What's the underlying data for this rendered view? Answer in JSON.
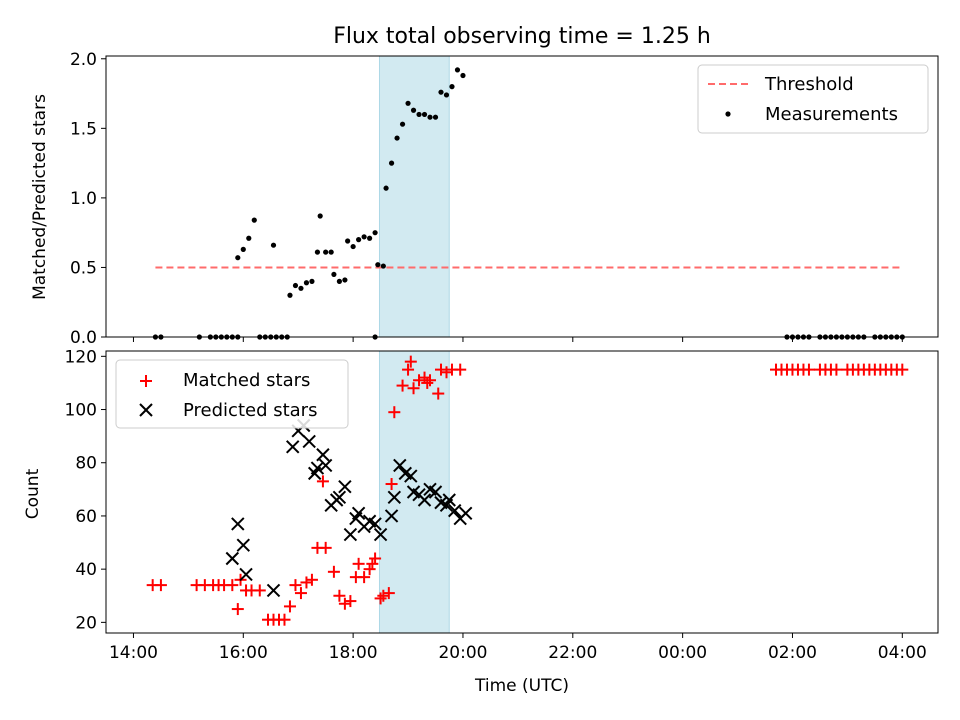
{
  "chart_data": {
    "type": "scatter",
    "title": "Flux total observing time = 1.25 h",
    "xlabel": "Time (UTC)",
    "x_unit": "hours since 14:00 UTC",
    "x_ticks": [
      {
        "value": 0,
        "label": "14:00"
      },
      {
        "value": 2,
        "label": "16:00"
      },
      {
        "value": 4,
        "label": "18:00"
      },
      {
        "value": 6,
        "label": "20:00"
      },
      {
        "value": 8,
        "label": "22:00"
      },
      {
        "value": 10,
        "label": "00:00"
      },
      {
        "value": 12,
        "label": "02:00"
      },
      {
        "value": 14,
        "label": "04:00"
      }
    ],
    "xlim": [
      -0.5,
      14.65
    ],
    "shaded_span": {
      "x_start": 4.48,
      "x_end": 5.75,
      "color": "#add8e6"
    },
    "panels": [
      {
        "id": "ratio",
        "ylabel": "Matched/Predicted stars",
        "ylim": [
          0,
          2.02
        ],
        "y_ticks": [
          {
            "value": 0.0,
            "label": "0.0"
          },
          {
            "value": 0.5,
            "label": "0.5"
          },
          {
            "value": 1.0,
            "label": "1.0"
          },
          {
            "value": 1.5,
            "label": "1.5"
          },
          {
            "value": 2.0,
            "label": "2.0"
          }
        ],
        "legend": {
          "position": "top-right",
          "entries": [
            "Threshold",
            "Measurements"
          ]
        },
        "threshold": {
          "name": "Threshold",
          "y": 0.5,
          "x_start": 0.4,
          "x_end": 14.0,
          "color": "#ff6b6b"
        },
        "series": [
          {
            "name": "Measurements",
            "marker": "dot",
            "color": "#000000",
            "points": [
              [
                0.4,
                0
              ],
              [
                0.5,
                0
              ],
              [
                1.2,
                0
              ],
              [
                1.4,
                0
              ],
              [
                1.5,
                0
              ],
              [
                1.6,
                0
              ],
              [
                1.7,
                0
              ],
              [
                1.8,
                0
              ],
              [
                1.9,
                0
              ],
              [
                2.3,
                0
              ],
              [
                2.4,
                0
              ],
              [
                2.5,
                0
              ],
              [
                2.6,
                0
              ],
              [
                2.7,
                0
              ],
              [
                2.8,
                0
              ],
              [
                4.4,
                0
              ],
              [
                1.9,
                0.57
              ],
              [
                2.0,
                0.63
              ],
              [
                2.1,
                0.71
              ],
              [
                2.2,
                0.84
              ],
              [
                2.55,
                0.66
              ],
              [
                2.85,
                0.3
              ],
              [
                2.95,
                0.37
              ],
              [
                3.05,
                0.35
              ],
              [
                3.15,
                0.39
              ],
              [
                3.25,
                0.4
              ],
              [
                3.35,
                0.61
              ],
              [
                3.4,
                0.87
              ],
              [
                3.5,
                0.61
              ],
              [
                3.6,
                0.61
              ],
              [
                3.65,
                0.45
              ],
              [
                3.75,
                0.4
              ],
              [
                3.85,
                0.41
              ],
              [
                3.9,
                0.69
              ],
              [
                4.0,
                0.65
              ],
              [
                4.1,
                0.7
              ],
              [
                4.2,
                0.72
              ],
              [
                4.3,
                0.71
              ],
              [
                4.4,
                0.75
              ],
              [
                4.45,
                0.52
              ],
              [
                4.55,
                0.51
              ],
              [
                4.6,
                1.07
              ],
              [
                4.7,
                1.25
              ],
              [
                4.8,
                1.43
              ],
              [
                4.9,
                1.53
              ],
              [
                5.0,
                1.68
              ],
              [
                5.1,
                1.63
              ],
              [
                5.2,
                1.6
              ],
              [
                5.3,
                1.6
              ],
              [
                5.4,
                1.58
              ],
              [
                5.5,
                1.58
              ],
              [
                5.6,
                1.76
              ],
              [
                5.7,
                1.74
              ],
              [
                5.8,
                1.8
              ],
              [
                5.9,
                1.92
              ],
              [
                6.0,
                1.88
              ],
              [
                11.9,
                0
              ],
              [
                12.0,
                0
              ],
              [
                12.1,
                0
              ],
              [
                12.2,
                0
              ],
              [
                12.3,
                0
              ],
              [
                12.5,
                0
              ],
              [
                12.6,
                0
              ],
              [
                12.7,
                0
              ],
              [
                12.8,
                0
              ],
              [
                12.9,
                0
              ],
              [
                13.0,
                0
              ],
              [
                13.1,
                0
              ],
              [
                13.2,
                0
              ],
              [
                13.3,
                0
              ],
              [
                13.5,
                0
              ],
              [
                13.6,
                0
              ],
              [
                13.7,
                0
              ],
              [
                13.8,
                0
              ],
              [
                13.9,
                0
              ],
              [
                14.0,
                0
              ]
            ]
          }
        ]
      },
      {
        "id": "counts",
        "ylabel": "Count",
        "ylim": [
          16,
          122
        ],
        "y_ticks": [
          {
            "value": 20,
            "label": "20"
          },
          {
            "value": 40,
            "label": "40"
          },
          {
            "value": 60,
            "label": "60"
          },
          {
            "value": 80,
            "label": "80"
          },
          {
            "value": 100,
            "label": "100"
          },
          {
            "value": 120,
            "label": "120"
          }
        ],
        "legend": {
          "position": "top-left",
          "entries": [
            "Matched stars",
            "Predicted stars"
          ]
        },
        "series": [
          {
            "name": "Matched stars",
            "marker": "plus",
            "color": "#ff0000",
            "points": [
              [
                0.35,
                34
              ],
              [
                0.5,
                34
              ],
              [
                1.15,
                34
              ],
              [
                1.3,
                34
              ],
              [
                1.45,
                34
              ],
              [
                1.55,
                34
              ],
              [
                1.65,
                34
              ],
              [
                1.8,
                34
              ],
              [
                1.9,
                25
              ],
              [
                1.95,
                36
              ],
              [
                2.05,
                32
              ],
              [
                2.15,
                32
              ],
              [
                2.3,
                32
              ],
              [
                2.45,
                21
              ],
              [
                2.55,
                21
              ],
              [
                2.65,
                21
              ],
              [
                2.75,
                21
              ],
              [
                2.85,
                26
              ],
              [
                2.95,
                34
              ],
              [
                3.05,
                31
              ],
              [
                3.15,
                35
              ],
              [
                3.25,
                36
              ],
              [
                3.35,
                48
              ],
              [
                3.45,
                73
              ],
              [
                3.5,
                48
              ],
              [
                3.65,
                39
              ],
              [
                3.75,
                30
              ],
              [
                3.85,
                27
              ],
              [
                3.95,
                28
              ],
              [
                4.05,
                37
              ],
              [
                4.1,
                42
              ],
              [
                4.2,
                37
              ],
              [
                4.3,
                40
              ],
              [
                4.35,
                42
              ],
              [
                4.4,
                44
              ],
              [
                4.5,
                29
              ],
              [
                4.55,
                30
              ],
              [
                4.65,
                31
              ],
              [
                4.7,
                72
              ],
              [
                4.75,
                99
              ],
              [
                4.9,
                109
              ],
              [
                5.0,
                115
              ],
              [
                5.05,
                118
              ],
              [
                5.1,
                108
              ],
              [
                5.2,
                111
              ],
              [
                5.3,
                112
              ],
              [
                5.35,
                110
              ],
              [
                5.4,
                111
              ],
              [
                5.55,
                106
              ],
              [
                5.6,
                115
              ],
              [
                5.7,
                114
              ],
              [
                5.8,
                115
              ],
              [
                5.95,
                115
              ],
              [
                11.7,
                115
              ],
              [
                11.8,
                115
              ],
              [
                11.9,
                115
              ],
              [
                12.0,
                115
              ],
              [
                12.1,
                115
              ],
              [
                12.2,
                115
              ],
              [
                12.3,
                115
              ],
              [
                12.5,
                115
              ],
              [
                12.6,
                115
              ],
              [
                12.7,
                115
              ],
              [
                12.8,
                115
              ],
              [
                13.0,
                115
              ],
              [
                13.1,
                115
              ],
              [
                13.2,
                115
              ],
              [
                13.3,
                115
              ],
              [
                13.4,
                115
              ],
              [
                13.5,
                115
              ],
              [
                13.6,
                115
              ],
              [
                13.7,
                115
              ],
              [
                13.8,
                115
              ],
              [
                13.9,
                115
              ],
              [
                14.0,
                115
              ]
            ]
          },
          {
            "name": "Predicted stars",
            "marker": "x",
            "color": "#000000",
            "points": [
              [
                1.8,
                44
              ],
              [
                1.9,
                57
              ],
              [
                2.0,
                49
              ],
              [
                2.05,
                38
              ],
              [
                2.55,
                32
              ],
              [
                2.9,
                86
              ],
              [
                3.0,
                92
              ],
              [
                3.1,
                94
              ],
              [
                3.2,
                88
              ],
              [
                3.3,
                76
              ],
              [
                3.35,
                78
              ],
              [
                3.45,
                83
              ],
              [
                3.5,
                79
              ],
              [
                3.6,
                64
              ],
              [
                3.7,
                66
              ],
              [
                3.75,
                67
              ],
              [
                3.85,
                71
              ],
              [
                3.95,
                53
              ],
              [
                4.05,
                59
              ],
              [
                4.1,
                61
              ],
              [
                4.2,
                56
              ],
              [
                4.3,
                58
              ],
              [
                4.4,
                57
              ],
              [
                4.5,
                53
              ],
              [
                4.7,
                60
              ],
              [
                4.75,
                67
              ],
              [
                4.85,
                79
              ],
              [
                4.95,
                76
              ],
              [
                5.05,
                75
              ],
              [
                5.1,
                69
              ],
              [
                5.2,
                68
              ],
              [
                5.3,
                66
              ],
              [
                5.4,
                70
              ],
              [
                5.5,
                69
              ],
              [
                5.6,
                65
              ],
              [
                5.7,
                64
              ],
              [
                5.75,
                66
              ],
              [
                5.85,
                62
              ],
              [
                5.95,
                59
              ],
              [
                6.05,
                61
              ]
            ]
          }
        ]
      }
    ]
  }
}
